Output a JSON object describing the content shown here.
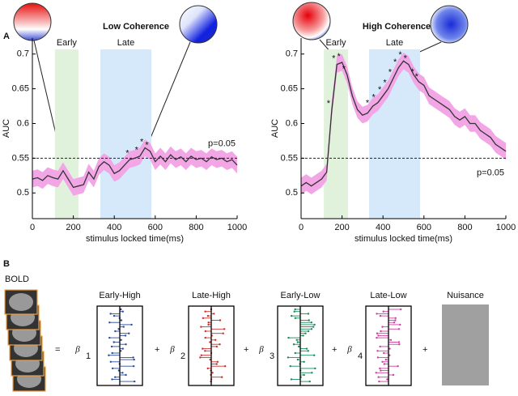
{
  "chart_data": [
    {
      "type": "line",
      "title": "Low Coherence",
      "panel": "A",
      "xlabel": "stimulus locked time(ms)",
      "ylabel": "AUC",
      "x": [
        0,
        25,
        50,
        75,
        100,
        125,
        150,
        175,
        200,
        225,
        250,
        275,
        300,
        325,
        350,
        375,
        400,
        425,
        450,
        475,
        500,
        525,
        550,
        575,
        600,
        625,
        650,
        675,
        700,
        725,
        750,
        775,
        800,
        825,
        850,
        875,
        900,
        925,
        950,
        975,
        1000
      ],
      "series": [
        {
          "name": "AUC",
          "color": "#333333",
          "values": [
            0.52,
            0.522,
            0.518,
            0.525,
            0.522,
            0.52,
            0.532,
            0.52,
            0.508,
            0.51,
            0.512,
            0.53,
            0.52,
            0.538,
            0.545,
            0.54,
            0.528,
            0.532,
            0.54,
            0.548,
            0.55,
            0.553,
            0.565,
            0.56,
            0.545,
            0.553,
            0.545,
            0.555,
            0.548,
            0.552,
            0.545,
            0.553,
            0.548,
            0.55,
            0.545,
            0.552,
            0.548,
            0.55,
            0.545,
            0.548,
            0.54
          ]
        }
      ],
      "error": 0.012,
      "error_color": "#f2a6e6",
      "regions": [
        {
          "label": "Early",
          "range": [
            110,
            225
          ],
          "color": "#e1f2dc"
        },
        {
          "label": "Late",
          "range": [
            332,
            581
          ],
          "color": "#d6e9fa"
        }
      ],
      "threshold": {
        "label": "p=0.05",
        "value": 0.55
      },
      "significance": {
        "label": "*",
        "x": [
          480,
          525,
          550,
          575
        ]
      },
      "xlim": [
        0,
        1000
      ],
      "xticks": [
        0,
        200,
        400,
        600,
        800,
        1000
      ],
      "ylim": [
        0.463,
        0.723
      ],
      "yticks": [
        0.5,
        0.55,
        0.6,
        0.65,
        0.7
      ]
    },
    {
      "type": "line",
      "title": "High Coherence",
      "xlabel": "stimulus locked time(ms)",
      "ylabel": "AUC",
      "x": [
        0,
        25,
        50,
        75,
        100,
        125,
        150,
        175,
        200,
        225,
        250,
        275,
        300,
        325,
        350,
        375,
        400,
        425,
        450,
        475,
        500,
        525,
        550,
        575,
        600,
        625,
        650,
        675,
        700,
        725,
        750,
        775,
        800,
        825,
        850,
        875,
        900,
        925,
        950,
        975,
        1000
      ],
      "series": [
        {
          "name": "AUC",
          "color": "#333333",
          "values": [
            0.51,
            0.515,
            0.51,
            0.515,
            0.52,
            0.53,
            0.62,
            0.685,
            0.688,
            0.67,
            0.64,
            0.62,
            0.612,
            0.615,
            0.625,
            0.63,
            0.64,
            0.65,
            0.665,
            0.68,
            0.69,
            0.685,
            0.67,
            0.66,
            0.655,
            0.64,
            0.635,
            0.63,
            0.625,
            0.62,
            0.61,
            0.605,
            0.61,
            0.6,
            0.6,
            0.59,
            0.585,
            0.58,
            0.57,
            0.565,
            0.56
          ]
        }
      ],
      "error": 0.012,
      "error_color": "#f2a6e6",
      "regions": [
        {
          "label": "Early",
          "range": [
            111,
            229
          ],
          "color": "#e1f2dc"
        },
        {
          "label": "Late",
          "range": [
            332,
            581
          ],
          "color": "#d6e9fa"
        }
      ],
      "threshold": {
        "label": "p=0.05",
        "value": 0.55
      },
      "significance": {
        "label": "*",
        "x": [
          150,
          175,
          200,
          225,
          340,
          370,
          400,
          425,
          450,
          475,
          500,
          525,
          560,
          580
        ]
      },
      "xlim": [
        0,
        1000
      ],
      "xticks": [
        0,
        200,
        400,
        600,
        800,
        1000
      ],
      "ylim": [
        0.463,
        0.723
      ],
      "yticks": [
        0.5,
        0.55,
        0.6,
        0.65,
        0.7
      ]
    }
  ],
  "model": {
    "panel": "B",
    "lhs": "BOLD",
    "equals": "=",
    "beta": "β",
    "terms": [
      {
        "sub": "1",
        "label": "Early-High",
        "color": "#2a4d9b"
      },
      {
        "op": "+",
        "sub": "2",
        "label": "Late-High",
        "color": "#d0302a"
      },
      {
        "op": "+",
        "sub": "3",
        "label": "Early-Low",
        "color": "#1a8a5a"
      },
      {
        "op": "+",
        "sub": "4",
        "label": "Late-Low",
        "color": "#d040a0"
      }
    ],
    "nuisance": {
      "op": "+",
      "label": "Nuisance"
    }
  }
}
